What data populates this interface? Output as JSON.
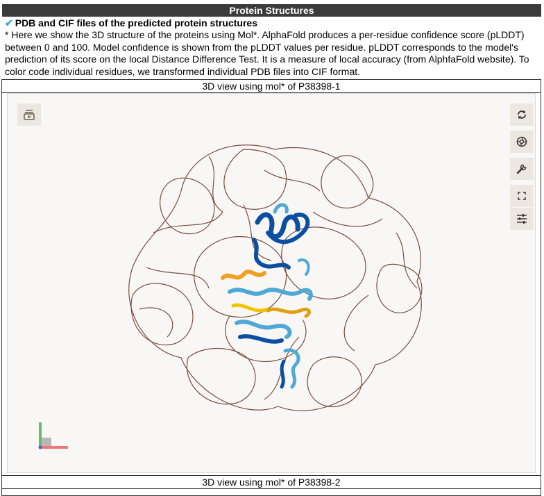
{
  "section": {
    "title": "Protein Structures"
  },
  "subheading": {
    "check_icon": "check-icon",
    "label": "PDB and CIF files of the predicted protein structures"
  },
  "description": "* Here we show the 3D structure of the proteins using Mol*. AlphaFold produces a per-residue confidence score (pLDDT) between 0 and 100. Model confidence is shown from the pLDDT values per residue. pLDDT corresponds to the model's prediction of its score on the local Distance Difference Test. It is a measure of local accuracy (from AlphfaFold website). To color code individual residues, we transformed individual PDB files into CIF format.",
  "viewers": [
    {
      "caption": "3D view using mol* of P38398-1"
    },
    {
      "caption": "3D view using mol* of P38398-2"
    }
  ],
  "controls": {
    "left": "animation-icon",
    "right": [
      "reset-view-icon",
      "screenshot-icon",
      "settings-icon",
      "fullscreen-icon",
      "controls-toggle-icon"
    ]
  },
  "colors": {
    "header_bar": "#3b3b3b",
    "check": "#3aa0d6",
    "coil": "#6b3a2a",
    "very_high": "#0b4ea2",
    "confident": "#4fa9d6",
    "low": "#f0c400",
    "very_low": "#f07a2a"
  }
}
